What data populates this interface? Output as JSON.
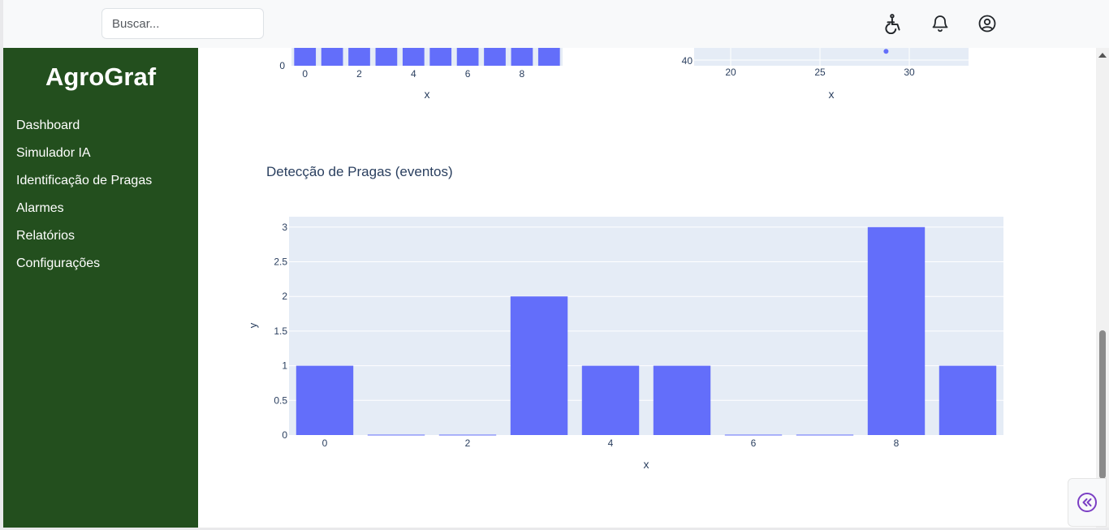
{
  "header": {
    "search_placeholder": "Buscar...",
    "icons": [
      "accessibility-icon",
      "bell-icon",
      "user-circle-icon"
    ]
  },
  "sidebar": {
    "brand": "AgroGraf",
    "items": [
      {
        "label": "Dashboard"
      },
      {
        "label": "Simulador IA"
      },
      {
        "label": "Identificação de Pragas"
      },
      {
        "label": "Alarmes"
      },
      {
        "label": "Relatórios"
      },
      {
        "label": "Configurações"
      }
    ]
  },
  "colors": {
    "sidebar": "#234f1e",
    "bar": "#636efa",
    "plot_bg": "#e5ecf6",
    "collapse_icon": "#7b3fc4"
  },
  "chart_data": [
    {
      "type": "bar",
      "partial": true,
      "x_ticks": [
        "0",
        "2",
        "4",
        "6",
        "8"
      ],
      "y_ticks": [
        "0"
      ],
      "xlabel": "x"
    },
    {
      "type": "scatter",
      "partial": true,
      "x_ticks": [
        "20",
        "25",
        "30"
      ],
      "y_ticks": [
        "40"
      ],
      "xlabel": "x",
      "points": [
        {
          "x": 28.7,
          "y": 40.6
        }
      ]
    },
    {
      "type": "bar",
      "title": "Detecção de Pragas (eventos)",
      "xlabel": "x",
      "ylabel": "y",
      "x": [
        0,
        1,
        2,
        3,
        4,
        5,
        6,
        7,
        8,
        9
      ],
      "values": [
        1,
        0,
        0,
        2,
        1,
        1,
        0,
        0,
        3,
        1
      ],
      "ylim": [
        0,
        3.15
      ],
      "y_ticks": [
        "0",
        "0.5",
        "1",
        "1.5",
        "2",
        "2.5",
        "3"
      ],
      "x_ticks": [
        "0",
        "2",
        "4",
        "6",
        "8"
      ],
      "grid": true
    }
  ]
}
